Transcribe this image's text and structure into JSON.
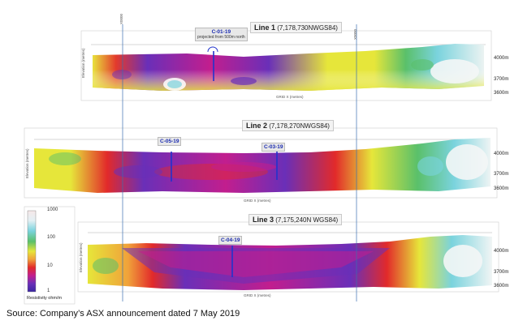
{
  "sections": [
    {
      "id": "line-1",
      "title": "Line 1",
      "coord": "(7,178,730NWGS84)",
      "elevations": [
        "4000m",
        "3700m",
        "3600m"
      ],
      "x_caption": "GRID X (metres)",
      "y_caption": "Elevation (metres)",
      "holes": [
        {
          "name": "C-01-19",
          "note": "projected from 500m north"
        }
      ]
    },
    {
      "id": "line-2",
      "title": "Line 2",
      "coord": "(7,178,270NWGS84)",
      "elevations": [
        "4000m",
        "3700m",
        "3600m"
      ],
      "x_caption": "GRID X (metres)",
      "y_caption": "Elevation (metres)",
      "holes": [
        {
          "name": "C-05-19",
          "note": ""
        },
        {
          "name": "C-03-19",
          "note": ""
        }
      ]
    },
    {
      "id": "line-3",
      "title": "Line 3",
      "coord": "(7,175,240N WGS84)",
      "elevations": [
        "4000m",
        "3700m",
        "3600m"
      ],
      "x_caption": "GRID X (metres)",
      "y_caption": "Elevation (metres)",
      "holes": [
        {
          "name": "C-04-19",
          "note": ""
        }
      ]
    }
  ],
  "legend": {
    "ticks": [
      "1000",
      "100",
      "10",
      "1"
    ],
    "title": "Resistivity ohm/m",
    "colors": [
      "#f6e8e8",
      "#e3f0f4",
      "#7ad3dd",
      "#5ac06a",
      "#e6e63a",
      "#f0a23a",
      "#e22a2a",
      "#c21e8e",
      "#6a2fb8",
      "#3a27a0"
    ]
  },
  "reference_lines": [
    "X0000",
    "X0000"
  ],
  "source": "Source: Company’s ASX announcement dated 7 May 2019"
}
